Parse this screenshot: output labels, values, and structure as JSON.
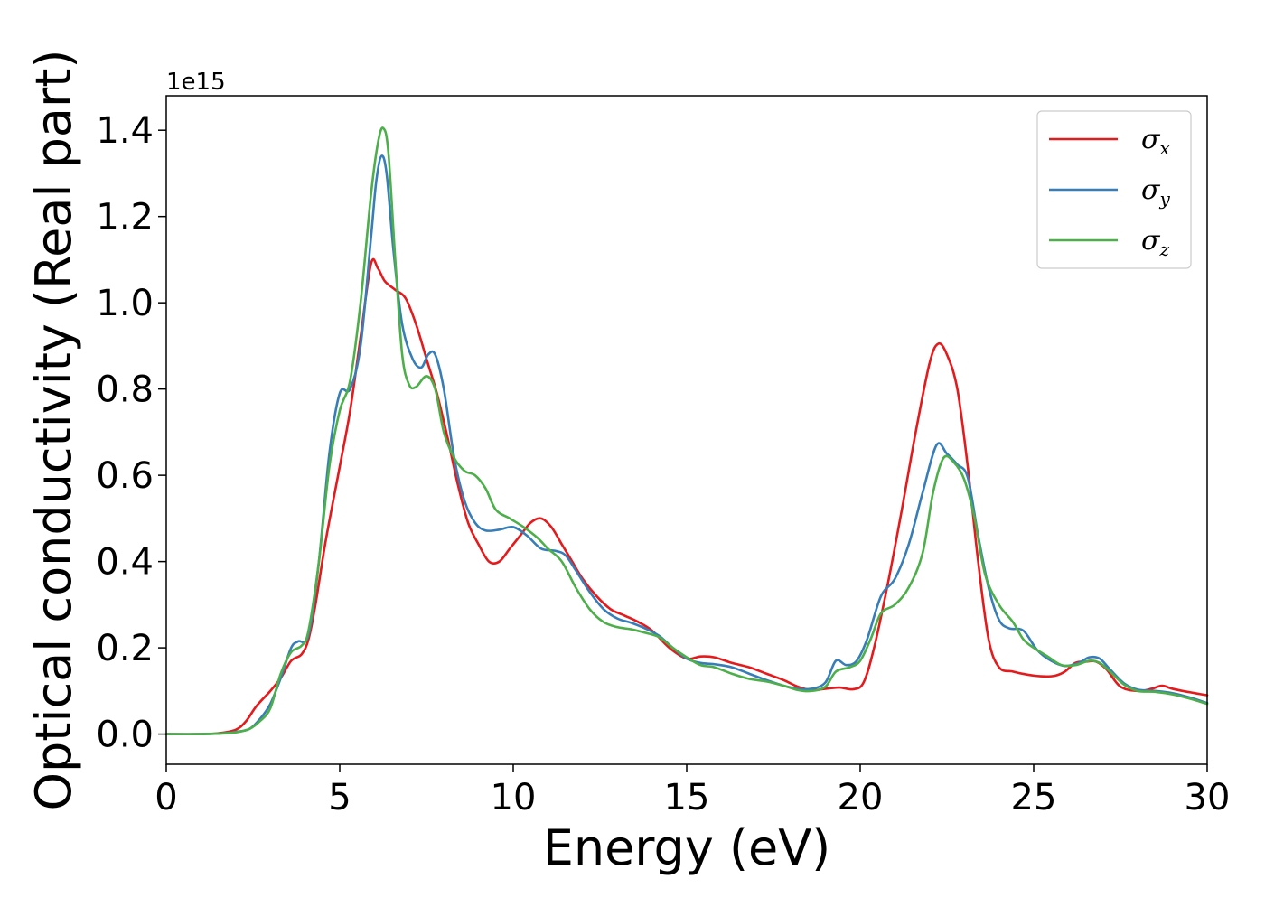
{
  "chart_data": {
    "type": "line",
    "xlabel": "Energy (eV)",
    "ylabel": "Optical conductivity (Real part)",
    "y_offset_text": "1e15",
    "xlim": [
      0,
      30
    ],
    "ylim": [
      -0.07,
      1.48
    ],
    "x_ticks": [
      0,
      5,
      10,
      15,
      20,
      25,
      30
    ],
    "x_tick_labels": [
      "0",
      "5",
      "10",
      "15",
      "20",
      "25",
      "30"
    ],
    "y_ticks": [
      0.0,
      0.2,
      0.4,
      0.6,
      0.8,
      1.0,
      1.2,
      1.4
    ],
    "y_tick_labels": [
      "0.0",
      "0.2",
      "0.4",
      "0.6",
      "0.8",
      "1.0",
      "1.2",
      "1.4"
    ],
    "grid": false,
    "legend_position": "top-right",
    "series": [
      {
        "name": "σx",
        "symbol": "σ",
        "subscript": "x",
        "color": "#e41a1c",
        "points": [
          [
            0,
            0.0
          ],
          [
            1,
            0.0
          ],
          [
            1.5,
            0.002
          ],
          [
            2.0,
            0.01
          ],
          [
            2.3,
            0.03
          ],
          [
            2.6,
            0.065
          ],
          [
            3.0,
            0.1
          ],
          [
            3.3,
            0.13
          ],
          [
            3.6,
            0.17
          ],
          [
            3.9,
            0.185
          ],
          [
            4.1,
            0.22
          ],
          [
            4.3,
            0.3
          ],
          [
            4.6,
            0.45
          ],
          [
            5.0,
            0.62
          ],
          [
            5.3,
            0.75
          ],
          [
            5.6,
            0.92
          ],
          [
            5.9,
            1.09
          ],
          [
            6.1,
            1.08
          ],
          [
            6.3,
            1.05
          ],
          [
            6.6,
            1.03
          ],
          [
            6.9,
            1.01
          ],
          [
            7.2,
            0.95
          ],
          [
            7.5,
            0.87
          ],
          [
            7.8,
            0.79
          ],
          [
            8.1,
            0.69
          ],
          [
            8.4,
            0.58
          ],
          [
            8.7,
            0.49
          ],
          [
            9.0,
            0.44
          ],
          [
            9.3,
            0.4
          ],
          [
            9.6,
            0.4
          ],
          [
            9.9,
            0.43
          ],
          [
            10.2,
            0.46
          ],
          [
            10.5,
            0.49
          ],
          [
            10.8,
            0.5
          ],
          [
            11.1,
            0.48
          ],
          [
            11.4,
            0.44
          ],
          [
            11.7,
            0.4
          ],
          [
            12.0,
            0.36
          ],
          [
            12.4,
            0.32
          ],
          [
            12.8,
            0.29
          ],
          [
            13.2,
            0.275
          ],
          [
            13.6,
            0.26
          ],
          [
            14.0,
            0.24
          ],
          [
            14.5,
            0.2
          ],
          [
            15.0,
            0.175
          ],
          [
            15.4,
            0.18
          ],
          [
            15.8,
            0.178
          ],
          [
            16.3,
            0.165
          ],
          [
            16.8,
            0.155
          ],
          [
            17.3,
            0.14
          ],
          [
            17.8,
            0.125
          ],
          [
            18.2,
            0.11
          ],
          [
            18.6,
            0.102
          ],
          [
            19.0,
            0.105
          ],
          [
            19.4,
            0.108
          ],
          [
            19.8,
            0.104
          ],
          [
            20.1,
            0.12
          ],
          [
            20.4,
            0.2
          ],
          [
            20.8,
            0.35
          ],
          [
            21.2,
            0.52
          ],
          [
            21.6,
            0.7
          ],
          [
            22.0,
            0.86
          ],
          [
            22.25,
            0.905
          ],
          [
            22.5,
            0.88
          ],
          [
            22.8,
            0.8
          ],
          [
            23.1,
            0.62
          ],
          [
            23.4,
            0.4
          ],
          [
            23.7,
            0.22
          ],
          [
            24.0,
            0.155
          ],
          [
            24.4,
            0.145
          ],
          [
            24.8,
            0.138
          ],
          [
            25.2,
            0.134
          ],
          [
            25.6,
            0.135
          ],
          [
            25.9,
            0.145
          ],
          [
            26.2,
            0.165
          ],
          [
            26.5,
            0.168
          ],
          [
            26.8,
            0.168
          ],
          [
            27.1,
            0.15
          ],
          [
            27.5,
            0.11
          ],
          [
            28.0,
            0.1
          ],
          [
            28.4,
            0.105
          ],
          [
            28.7,
            0.112
          ],
          [
            29.0,
            0.105
          ],
          [
            29.5,
            0.097
          ],
          [
            30.0,
            0.09
          ]
        ]
      },
      {
        "name": "σy",
        "symbol": "σ",
        "subscript": "y",
        "color": "#377eb8",
        "points": [
          [
            0,
            0.0
          ],
          [
            1,
            0.0
          ],
          [
            1.5,
            0.001
          ],
          [
            2.0,
            0.005
          ],
          [
            2.4,
            0.012
          ],
          [
            2.7,
            0.035
          ],
          [
            3.0,
            0.07
          ],
          [
            3.3,
            0.13
          ],
          [
            3.6,
            0.2
          ],
          [
            3.8,
            0.215
          ],
          [
            4.1,
            0.23
          ],
          [
            4.4,
            0.4
          ],
          [
            4.7,
            0.65
          ],
          [
            5.0,
            0.79
          ],
          [
            5.3,
            0.8
          ],
          [
            5.6,
            0.9
          ],
          [
            5.9,
            1.15
          ],
          [
            6.05,
            1.28
          ],
          [
            6.2,
            1.34
          ],
          [
            6.35,
            1.3
          ],
          [
            6.55,
            1.12
          ],
          [
            6.8,
            0.95
          ],
          [
            7.1,
            0.87
          ],
          [
            7.35,
            0.85
          ],
          [
            7.55,
            0.88
          ],
          [
            7.75,
            0.88
          ],
          [
            8.0,
            0.8
          ],
          [
            8.3,
            0.64
          ],
          [
            8.6,
            0.54
          ],
          [
            8.9,
            0.49
          ],
          [
            9.2,
            0.472
          ],
          [
            9.6,
            0.474
          ],
          [
            10.0,
            0.48
          ],
          [
            10.4,
            0.46
          ],
          [
            10.8,
            0.43
          ],
          [
            11.2,
            0.425
          ],
          [
            11.5,
            0.415
          ],
          [
            11.8,
            0.38
          ],
          [
            12.2,
            0.33
          ],
          [
            12.6,
            0.29
          ],
          [
            13.0,
            0.268
          ],
          [
            13.4,
            0.258
          ],
          [
            13.8,
            0.245
          ],
          [
            14.2,
            0.228
          ],
          [
            14.6,
            0.2
          ],
          [
            15.0,
            0.175
          ],
          [
            15.4,
            0.165
          ],
          [
            15.8,
            0.162
          ],
          [
            16.3,
            0.155
          ],
          [
            16.8,
            0.14
          ],
          [
            17.3,
            0.125
          ],
          [
            17.8,
            0.112
          ],
          [
            18.2,
            0.105
          ],
          [
            18.6,
            0.105
          ],
          [
            19.0,
            0.12
          ],
          [
            19.3,
            0.17
          ],
          [
            19.6,
            0.16
          ],
          [
            19.9,
            0.17
          ],
          [
            20.2,
            0.22
          ],
          [
            20.6,
            0.32
          ],
          [
            21.0,
            0.36
          ],
          [
            21.4,
            0.44
          ],
          [
            21.8,
            0.56
          ],
          [
            22.2,
            0.67
          ],
          [
            22.5,
            0.65
          ],
          [
            22.8,
            0.625
          ],
          [
            23.1,
            0.595
          ],
          [
            23.4,
            0.46
          ],
          [
            23.7,
            0.34
          ],
          [
            24.0,
            0.265
          ],
          [
            24.3,
            0.245
          ],
          [
            24.7,
            0.24
          ],
          [
            25.1,
            0.195
          ],
          [
            25.5,
            0.17
          ],
          [
            25.9,
            0.158
          ],
          [
            26.3,
            0.165
          ],
          [
            26.6,
            0.178
          ],
          [
            26.9,
            0.175
          ],
          [
            27.2,
            0.15
          ],
          [
            27.6,
            0.118
          ],
          [
            28.0,
            0.103
          ],
          [
            28.5,
            0.1
          ],
          [
            29.0,
            0.095
          ],
          [
            29.5,
            0.085
          ],
          [
            30.0,
            0.072
          ]
        ]
      },
      {
        "name": "σz",
        "symbol": "σ",
        "subscript": "z",
        "color": "#4daf4a",
        "points": [
          [
            0,
            0.0
          ],
          [
            1,
            0.0
          ],
          [
            1.5,
            0.001
          ],
          [
            2.0,
            0.004
          ],
          [
            2.4,
            0.012
          ],
          [
            2.7,
            0.03
          ],
          [
            3.0,
            0.06
          ],
          [
            3.3,
            0.14
          ],
          [
            3.6,
            0.19
          ],
          [
            3.9,
            0.205
          ],
          [
            4.1,
            0.24
          ],
          [
            4.4,
            0.4
          ],
          [
            4.7,
            0.62
          ],
          [
            5.0,
            0.75
          ],
          [
            5.3,
            0.82
          ],
          [
            5.6,
            1.0
          ],
          [
            5.9,
            1.25
          ],
          [
            6.1,
            1.37
          ],
          [
            6.25,
            1.405
          ],
          [
            6.4,
            1.35
          ],
          [
            6.6,
            1.1
          ],
          [
            6.8,
            0.88
          ],
          [
            7.0,
            0.81
          ],
          [
            7.2,
            0.805
          ],
          [
            7.5,
            0.83
          ],
          [
            7.75,
            0.8
          ],
          [
            8.0,
            0.7
          ],
          [
            8.3,
            0.64
          ],
          [
            8.6,
            0.61
          ],
          [
            8.9,
            0.6
          ],
          [
            9.2,
            0.57
          ],
          [
            9.5,
            0.52
          ],
          [
            9.9,
            0.5
          ],
          [
            10.3,
            0.48
          ],
          [
            10.7,
            0.455
          ],
          [
            11.0,
            0.43
          ],
          [
            11.4,
            0.4
          ],
          [
            11.8,
            0.34
          ],
          [
            12.2,
            0.29
          ],
          [
            12.6,
            0.26
          ],
          [
            13.0,
            0.248
          ],
          [
            13.4,
            0.243
          ],
          [
            13.8,
            0.235
          ],
          [
            14.2,
            0.225
          ],
          [
            14.6,
            0.2
          ],
          [
            15.0,
            0.178
          ],
          [
            15.4,
            0.16
          ],
          [
            15.8,
            0.155
          ],
          [
            16.3,
            0.14
          ],
          [
            16.8,
            0.128
          ],
          [
            17.3,
            0.122
          ],
          [
            17.8,
            0.112
          ],
          [
            18.2,
            0.102
          ],
          [
            18.6,
            0.1
          ],
          [
            19.0,
            0.11
          ],
          [
            19.3,
            0.145
          ],
          [
            19.7,
            0.155
          ],
          [
            20.0,
            0.17
          ],
          [
            20.3,
            0.22
          ],
          [
            20.6,
            0.28
          ],
          [
            21.0,
            0.3
          ],
          [
            21.4,
            0.34
          ],
          [
            21.8,
            0.42
          ],
          [
            22.1,
            0.56
          ],
          [
            22.4,
            0.64
          ],
          [
            22.7,
            0.63
          ],
          [
            23.0,
            0.59
          ],
          [
            23.3,
            0.5
          ],
          [
            23.6,
            0.37
          ],
          [
            24.0,
            0.3
          ],
          [
            24.4,
            0.26
          ],
          [
            24.7,
            0.22
          ],
          [
            25.0,
            0.2
          ],
          [
            25.4,
            0.18
          ],
          [
            25.8,
            0.16
          ],
          [
            26.2,
            0.16
          ],
          [
            26.6,
            0.17
          ],
          [
            26.9,
            0.165
          ],
          [
            27.2,
            0.145
          ],
          [
            27.6,
            0.115
          ],
          [
            28.0,
            0.1
          ],
          [
            28.5,
            0.098
          ],
          [
            29.0,
            0.092
          ],
          [
            29.5,
            0.082
          ],
          [
            30.0,
            0.07
          ]
        ]
      }
    ]
  }
}
